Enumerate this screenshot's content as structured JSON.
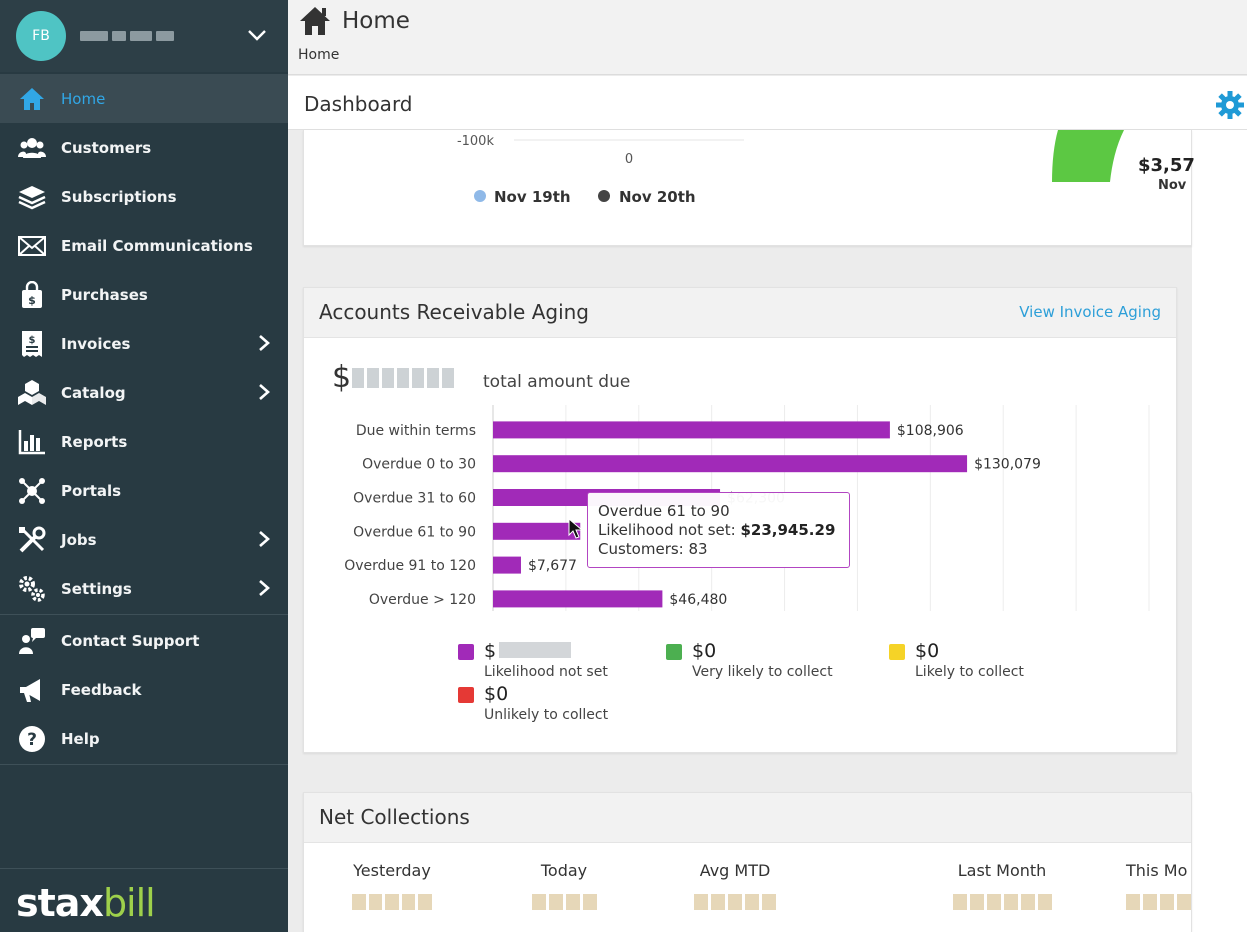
{
  "user": {
    "initials": "FB"
  },
  "sidebar": {
    "items": [
      {
        "label": "Home",
        "icon": "home-icon",
        "active": true
      },
      {
        "label": "Customers",
        "icon": "customers-icon"
      },
      {
        "label": "Subscriptions",
        "icon": "layers-icon"
      },
      {
        "label": "Email Communications",
        "icon": "envelope-icon"
      },
      {
        "label": "Purchases",
        "icon": "shopping-bag-icon"
      },
      {
        "label": "Invoices",
        "icon": "invoice-icon",
        "has_arrow": true
      },
      {
        "label": "Catalog",
        "icon": "boxes-icon",
        "has_arrow": true
      },
      {
        "label": "Reports",
        "icon": "bar-chart-icon"
      },
      {
        "label": "Portals",
        "icon": "network-icon"
      },
      {
        "label": "Jobs",
        "icon": "tools-icon",
        "has_arrow": true
      },
      {
        "label": "Settings",
        "icon": "gears-icon",
        "has_arrow": true
      },
      {
        "label": "Contact Support",
        "icon": "support-icon"
      },
      {
        "label": "Feedback",
        "icon": "megaphone-icon"
      },
      {
        "label": "Help",
        "icon": "help-icon"
      }
    ],
    "brand_part1": "stax",
    "brand_part2": "bill"
  },
  "header": {
    "title": "Home",
    "breadcrumb": "Home"
  },
  "dashboard": {
    "title": "Dashboard"
  },
  "sales_chart": {
    "ytick": "-100k",
    "xtick": "0",
    "legend": [
      {
        "name": "Nov 19th",
        "color": "#8fb9e8"
      },
      {
        "name": "Nov 20th",
        "color": "#444444"
      }
    ],
    "side_amount": "$3,57",
    "side_label": "Nov"
  },
  "ar_aging": {
    "title": "Accounts Receivable Aging",
    "link": "View Invoice Aging",
    "total_prefix": "$",
    "total_label": "total amount due",
    "tooltip": {
      "line1": "Overdue 61 to 90",
      "line2_label": "Likelihood not set: ",
      "line2_value": "$23,945.29",
      "line3": "Customers: 83"
    },
    "legend": [
      {
        "amount": "$",
        "label": "Likelihood not set",
        "color": "#a12ab8"
      },
      {
        "amount": "$0",
        "label": "Very likely to collect",
        "color": "#4caf50"
      },
      {
        "amount": "$0",
        "label": "Likely to collect",
        "color": "#f5d327"
      },
      {
        "amount": "$0",
        "label": "Unlikely to collect",
        "color": "#e53935"
      }
    ]
  },
  "chart_data": {
    "type": "bar",
    "orientation": "horizontal",
    "categories": [
      "Due within terms",
      "Overdue 0 to 30",
      "Overdue 31 to 60",
      "Overdue 61 to 90",
      "Overdue 91 to 120",
      "Overdue > 120"
    ],
    "series": [
      {
        "name": "Likelihood not set",
        "values": [
          108906,
          130079,
          62300,
          23945,
          7677,
          46480
        ],
        "color": "#a12ab8"
      }
    ],
    "data_labels": [
      "$108,906",
      "$130,079",
      "$62,300",
      "",
      "$7,677",
      "$46,480"
    ],
    "xlim": [
      0,
      180000
    ],
    "grid": true
  },
  "net_collections": {
    "title": "Net Collections",
    "columns": [
      "Yesterday",
      "Today",
      "Avg MTD",
      "Last Month",
      "This Mo"
    ]
  }
}
